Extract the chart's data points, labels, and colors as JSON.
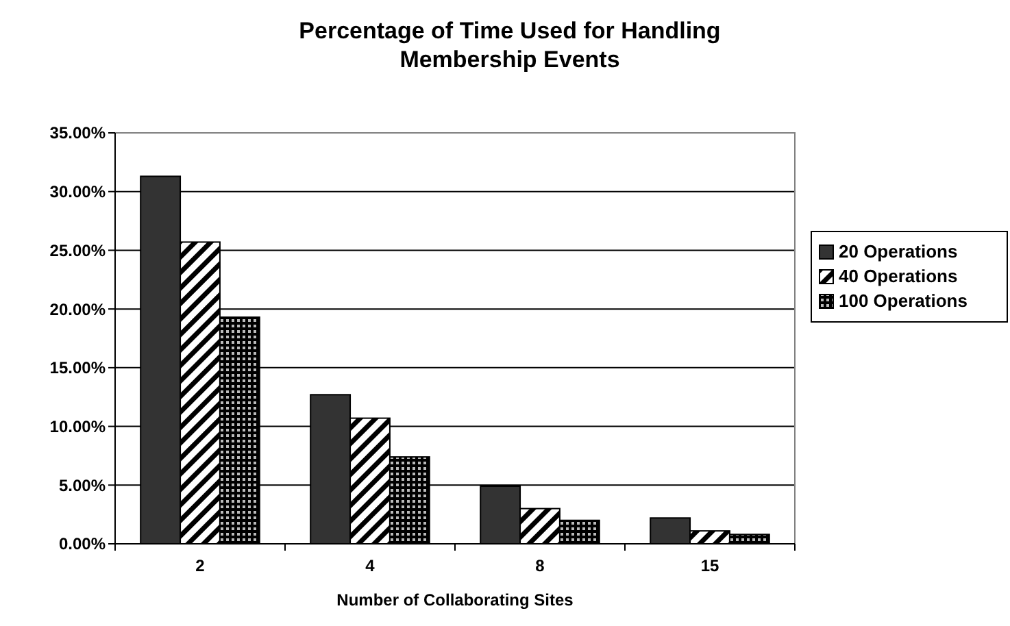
{
  "chart_data": {
    "type": "bar",
    "title": "Percentage of Time Used for Handling Membership Events",
    "xlabel": "Number of Collaborating Sites",
    "categories": [
      "2",
      "4",
      "8",
      "15"
    ],
    "series": [
      {
        "name": "20 Operations",
        "color": "#333333",
        "values": [
          31.3,
          12.7,
          4.9,
          2.2
        ]
      },
      {
        "name": "40 Operations",
        "color": "#000000",
        "values": [
          25.7,
          10.7,
          3.0,
          1.1
        ]
      },
      {
        "name": "100 Operations",
        "color": "#000000",
        "values": [
          19.3,
          7.4,
          2.0,
          0.8
        ]
      }
    ],
    "ylim": [
      0,
      35
    ],
    "yticks": [
      {
        "value": 0,
        "label": "0.00%"
      },
      {
        "value": 5,
        "label": "5.00%"
      },
      {
        "value": 10,
        "label": "10.00%"
      },
      {
        "value": 15,
        "label": "15.00%"
      },
      {
        "value": 20,
        "label": "20.00%"
      },
      {
        "value": 25,
        "label": "25.00%"
      },
      {
        "value": 30,
        "label": "30.00%"
      },
      {
        "value": 35,
        "label": "35.00%"
      }
    ],
    "grid": "y",
    "legend": "right"
  }
}
